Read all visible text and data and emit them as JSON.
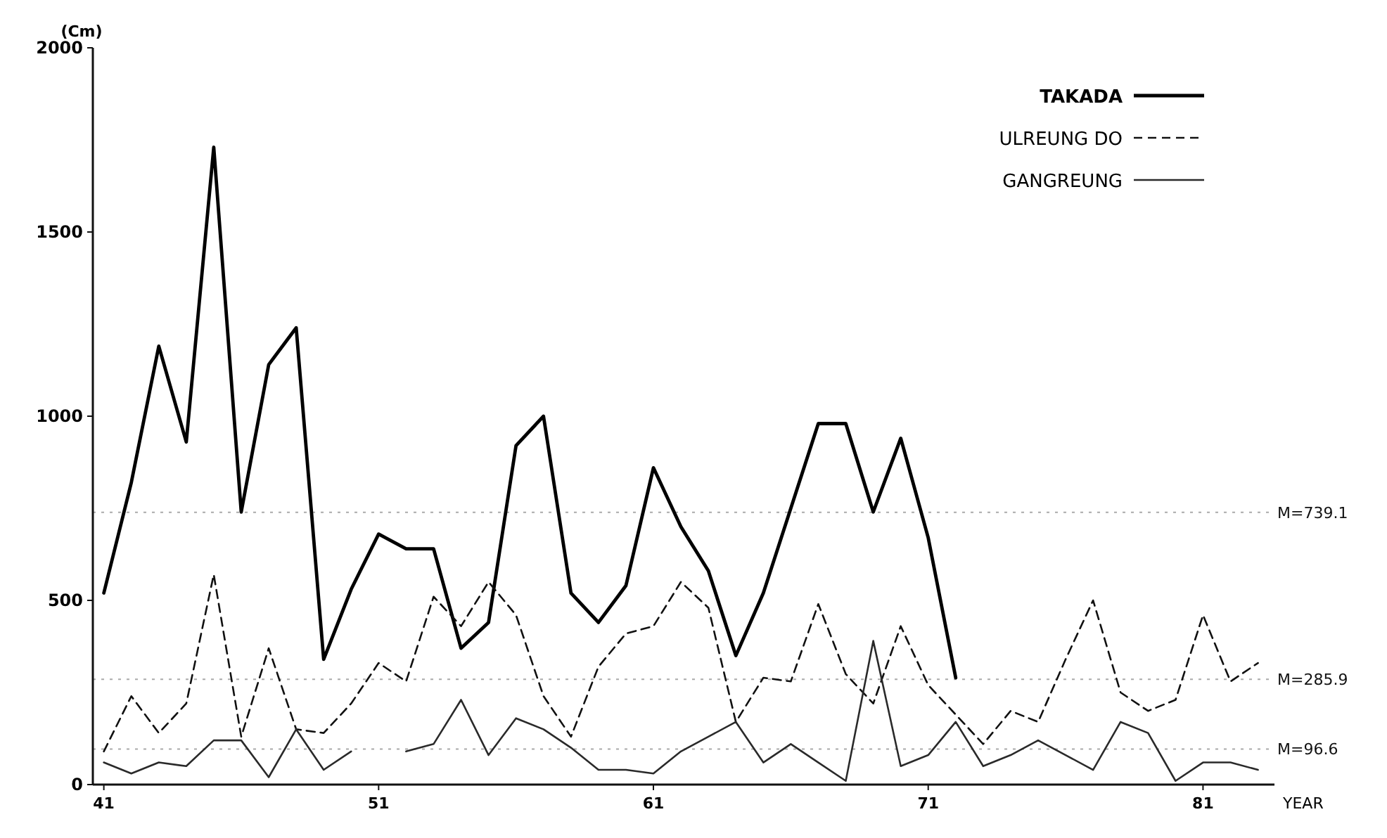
{
  "chart_data": {
    "type": "line",
    "ylabel": "(Cm)",
    "xlabel": "YEAR",
    "x": [
      41,
      42,
      43,
      44,
      45,
      46,
      47,
      48,
      49,
      50,
      51,
      52,
      53,
      54,
      55,
      56,
      57,
      58,
      59,
      60,
      61,
      62,
      63,
      64,
      65,
      66,
      67,
      68,
      69,
      70,
      71,
      72,
      73,
      74,
      75,
      76,
      77,
      78,
      79,
      80,
      81,
      82,
      83
    ],
    "series": [
      {
        "name": "TAKADA",
        "color": "#000000",
        "line_style": "solid",
        "values": [
          520,
          820,
          1190,
          930,
          1730,
          740,
          1140,
          1240,
          340,
          530,
          680,
          640,
          640,
          370,
          440,
          920,
          1000,
          520,
          440,
          540,
          860,
          700,
          580,
          350,
          520,
          750,
          980,
          980,
          740,
          940,
          670,
          290,
          null,
          null,
          null,
          null,
          null,
          null,
          null,
          null,
          null,
          null,
          null
        ]
      },
      {
        "name": "ULREUNG DO",
        "color": "#111111",
        "line_style": "dashed",
        "values": [
          90,
          240,
          140,
          220,
          570,
          130,
          370,
          150,
          140,
          220,
          330,
          280,
          510,
          430,
          550,
          460,
          240,
          130,
          320,
          410,
          430,
          550,
          480,
          170,
          290,
          280,
          490,
          300,
          220,
          430,
          270,
          190,
          110,
          200,
          170,
          340,
          500,
          250,
          200,
          230,
          460,
          280,
          330
        ]
      },
      {
        "name": "GANGREUNG",
        "color": "#2a2a2a",
        "line_style": "solid",
        "values": [
          60,
          30,
          60,
          50,
          120,
          120,
          20,
          150,
          40,
          90,
          null,
          90,
          110,
          230,
          80,
          180,
          150,
          100,
          40,
          40,
          30,
          90,
          130,
          170,
          60,
          110,
          60,
          10,
          390,
          50,
          80,
          170,
          50,
          80,
          120,
          80,
          40,
          170,
          140,
          10,
          60,
          60,
          40
        ]
      }
    ],
    "xlim": [
      40.6,
      83.6
    ],
    "ylim": [
      0,
      2000
    ],
    "xticks": [
      41,
      51,
      61,
      71,
      81
    ],
    "yticks": [
      0,
      500,
      1000,
      1500,
      2000
    ],
    "ref_lines": [
      {
        "axis": "y",
        "value": 739.1,
        "label": "M=739.1",
        "line_style": "dotted",
        "color": "#aaaaaa"
      },
      {
        "axis": "y",
        "value": 285.9,
        "label": "M=285.9",
        "line_style": "dotted",
        "color": "#aaaaaa"
      },
      {
        "axis": "y",
        "value": 96.6,
        "label": "M=96.6",
        "line_style": "dotted",
        "color": "#aaaaaa"
      }
    ],
    "legend": "top right",
    "grid": false,
    "marker": "none"
  }
}
